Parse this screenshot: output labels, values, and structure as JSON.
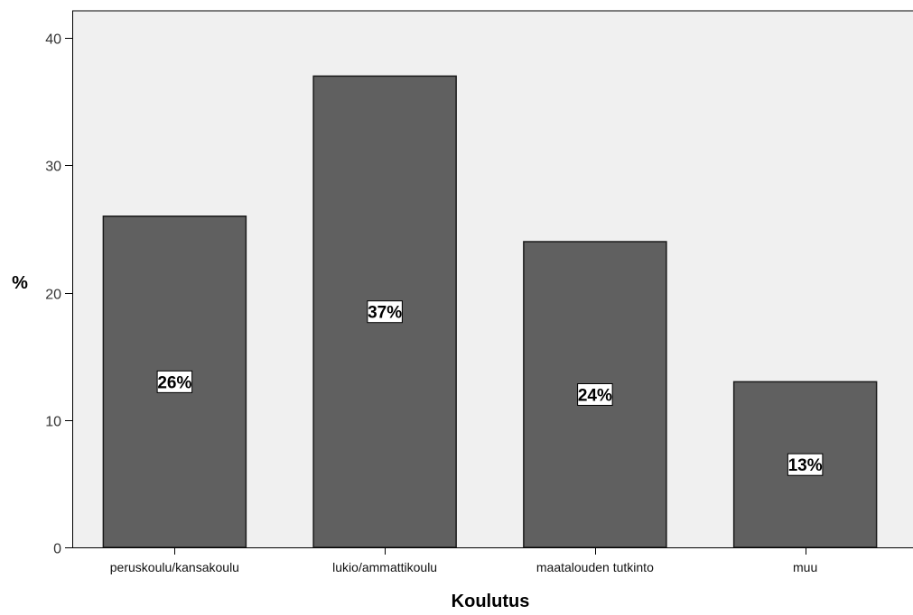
{
  "chart_data": {
    "type": "bar",
    "categories": [
      "peruskoulu/kansakoulu",
      "lukio/ammattikoulu",
      "maatalouden tutkinto",
      "muu"
    ],
    "values": [
      26,
      37,
      24,
      13
    ],
    "data_labels": [
      "26%",
      "37%",
      "24%",
      "13%"
    ],
    "title": "",
    "xlabel": "Koulutus",
    "ylabel": "%",
    "ylim": [
      0,
      40
    ],
    "yticks": [
      0,
      10,
      20,
      30,
      40
    ],
    "grid": false,
    "legend": "none",
    "colors": {
      "plot_background": "#f0f0f0",
      "bar_fill": "#606060",
      "bar_stroke": "#1a1a1a",
      "axis": "#000000",
      "label_box": "#ffffff"
    }
  }
}
